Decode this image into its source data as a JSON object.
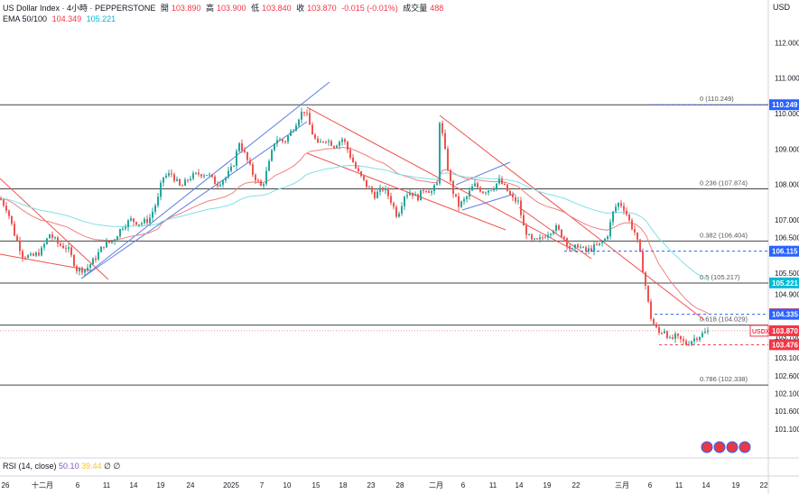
{
  "header": {
    "symbol_title": "US Dollar Index · 4小時 · PEPPERSTONE",
    "open_label": "開",
    "open_value": "103.890",
    "high_label": "高",
    "high_value": "103.900",
    "low_label": "低",
    "low_value": "103.840",
    "close_label": "收",
    "close_value": "103.870",
    "change": "-0.015 (-0.01%)",
    "volume_label": "成交量",
    "volume_value": "488",
    "ema_label": "EMA 50/100",
    "ema50_value": "104.349",
    "ema100_value": "105.221"
  },
  "currency": "USD",
  "rsi": {
    "label": "RSI (14, close)",
    "value1": "50.10",
    "value2": "39.44",
    "extra1": "∅",
    "extra2": "∅"
  },
  "colors": {
    "up": "#26a69a",
    "down": "#ef5350",
    "ema50": "#f08080",
    "ema100": "#7ee0e8",
    "channel_blue": "#5b7fe0",
    "channel_red": "#ef5350",
    "level": "#444444",
    "price_line": "#ef5350"
  },
  "chart_data": {
    "type": "candlestick",
    "y_axis_ticks": [
      "112.000",
      "111.000",
      "110.000",
      "109.000",
      "108.000",
      "107.000",
      "106.500",
      "105.500",
      "104.900",
      "103.700",
      "103.100",
      "102.600",
      "102.100",
      "101.600",
      "101.100"
    ],
    "x_axis_labels": [
      "26",
      "十二月",
      "6",
      "11",
      "14",
      "19",
      "24",
      "2025",
      "7",
      "10",
      "15",
      "18",
      "23",
      "28",
      "二月",
      "6",
      "11",
      "14",
      "19",
      "22",
      "三月",
      "6",
      "11",
      "14",
      "19",
      "22"
    ],
    "fib_levels": [
      {
        "label": "0 (110.249)",
        "value": 110.249
      },
      {
        "label": "0.236 (107.874)",
        "value": 107.874
      },
      {
        "label": "0.382 (106.404)",
        "value": 106.404
      },
      {
        "label": "0.5 (105.217)",
        "value": 105.217
      },
      {
        "label": "0.618 (104.029)",
        "value": 104.029
      },
      {
        "label": "0.786 (102.338)",
        "value": 102.338
      }
    ],
    "price_badges": [
      {
        "text": "110.249",
        "value": 110.249,
        "color": "#2962ff",
        "dashed": true
      },
      {
        "text": "106.115",
        "value": 106.115,
        "color": "#2962ff",
        "dashed": true
      },
      {
        "text": "105.221",
        "value": 105.221,
        "color": "#00bcd4",
        "dashed": false
      },
      {
        "text": "104.349",
        "value": 104.349,
        "color": "#f23645",
        "dashed": false
      },
      {
        "text": "104.335",
        "value": 104.335,
        "color": "#2962ff",
        "dashed": true
      },
      {
        "text": "103.870",
        "value": 103.87,
        "color": "#f23645",
        "dashed": false,
        "tag": "USDX"
      },
      {
        "text": "103.476",
        "value": 103.476,
        "color": "#f23645",
        "dashed": true
      }
    ],
    "price_path": [
      [
        0,
        107.6
      ],
      [
        8,
        107.3
      ],
      [
        16,
        106.6
      ],
      [
        25,
        106.0
      ],
      [
        35,
        105.95
      ],
      [
        45,
        106.1
      ],
      [
        55,
        106.6
      ],
      [
        65,
        106.3
      ],
      [
        75,
        106.2
      ],
      [
        85,
        105.6
      ],
      [
        95,
        105.6
      ],
      [
        105,
        105.9
      ],
      [
        115,
        106.3
      ],
      [
        125,
        106.4
      ],
      [
        135,
        106.8
      ],
      [
        145,
        107.0
      ],
      [
        155,
        106.9
      ],
      [
        165,
        107.0
      ],
      [
        175,
        107.6
      ],
      [
        180,
        108.2
      ],
      [
        190,
        108.3
      ],
      [
        200,
        107.9
      ],
      [
        210,
        108.2
      ],
      [
        220,
        108.3
      ],
      [
        230,
        108.3
      ],
      [
        240,
        108.0
      ],
      [
        250,
        108.2
      ],
      [
        258,
        108.5
      ],
      [
        265,
        109.2
      ],
      [
        272,
        108.8
      ],
      [
        280,
        108.3
      ],
      [
        290,
        107.9
      ],
      [
        298,
        108.6
      ],
      [
        305,
        109.3
      ],
      [
        315,
        109.2
      ],
      [
        325,
        109.6
      ],
      [
        333,
        110.0
      ],
      [
        338,
        110.1
      ],
      [
        345,
        109.5
      ],
      [
        352,
        109.1
      ],
      [
        360,
        109.3
      ],
      [
        370,
        109.1
      ],
      [
        380,
        109.3
      ],
      [
        388,
        108.8
      ],
      [
        395,
        108.4
      ],
      [
        405,
        108.0
      ],
      [
        415,
        107.7
      ],
      [
        425,
        107.9
      ],
      [
        432,
        107.6
      ],
      [
        440,
        107.1
      ],
      [
        448,
        107.7
      ],
      [
        455,
        107.8
      ],
      [
        462,
        107.6
      ],
      [
        470,
        107.9
      ],
      [
        478,
        107.8
      ],
      [
        484,
        108.0
      ],
      [
        487,
        109.8
      ],
      [
        490,
        109.4
      ],
      [
        495,
        108.6
      ],
      [
        500,
        107.9
      ],
      [
        508,
        107.4
      ],
      [
        516,
        107.6
      ],
      [
        525,
        108.0
      ],
      [
        535,
        107.8
      ],
      [
        545,
        107.9
      ],
      [
        553,
        108.1
      ],
      [
        560,
        107.9
      ],
      [
        567,
        107.6
      ],
      [
        574,
        107.5
      ],
      [
        580,
        106.8
      ],
      [
        588,
        106.4
      ],
      [
        596,
        106.4
      ],
      [
        605,
        106.6
      ],
      [
        615,
        106.8
      ],
      [
        625,
        106.5
      ],
      [
        633,
        106.1
      ],
      [
        640,
        106.3
      ],
      [
        648,
        106.1
      ],
      [
        656,
        106.2
      ],
      [
        664,
        106.3
      ],
      [
        672,
        106.5
      ],
      [
        680,
        107.3
      ],
      [
        686,
        107.5
      ],
      [
        692,
        107.3
      ],
      [
        698,
        106.9
      ],
      [
        704,
        106.6
      ],
      [
        710,
        105.9
      ],
      [
        716,
        105.0
      ],
      [
        720,
        104.3
      ],
      [
        725,
        104.0
      ],
      [
        730,
        103.8
      ],
      [
        736,
        103.9
      ],
      [
        742,
        103.6
      ],
      [
        748,
        103.7
      ],
      [
        754,
        103.6
      ],
      [
        760,
        103.5
      ],
      [
        766,
        103.6
      ],
      [
        772,
        103.7
      ],
      [
        780,
        103.8
      ],
      [
        785,
        103.87
      ]
    ]
  }
}
